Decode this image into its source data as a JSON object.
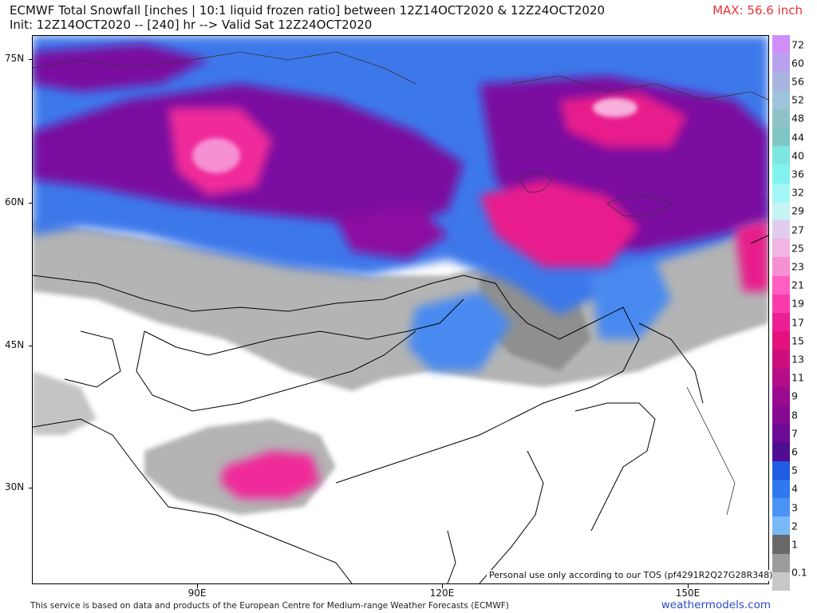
{
  "header": {
    "title_line1": "ECMWF Total Snowfall [inches | 10:1 liquid frozen ratio] between 12Z14OCT2020 & 12Z24OCT2020",
    "title_line2": "Init: 12Z14OCT2020 -- [240] hr --> Valid Sat 12Z24OCT2020",
    "max_label": "MAX: 56.6 inch",
    "max_color": "#e8343b"
  },
  "map": {
    "lat_labels": [
      "75N",
      "60N",
      "45N",
      "30N"
    ],
    "lon_labels": [
      "90E",
      "120E",
      "150E"
    ],
    "disclaimer": "Personal use only according to our TOS (pf4291R2Q27G28R348)"
  },
  "legend": {
    "labels": [
      "72",
      "60",
      "56",
      "52",
      "48",
      "44",
      "40",
      "36",
      "32",
      "29",
      "27",
      "25",
      "23",
      "21",
      "19",
      "17",
      "15",
      "13",
      "11",
      "9",
      "8",
      "7",
      "6",
      "5",
      "4",
      "3",
      "2",
      "1",
      "0.1"
    ],
    "colors": [
      "#d08ef8",
      "#b8a2ee",
      "#a9b5e0",
      "#9dc4dc",
      "#8fc3c7",
      "#7fc6c4",
      "#7de6e0",
      "#82f2f0",
      "#a2f6f6",
      "#c6f3f4",
      "#e2ccee",
      "#f2b4e0",
      "#f78fd3",
      "#ff5ec0",
      "#f93bac",
      "#ec1e93",
      "#e3107e",
      "#cc0f7c",
      "#b40d8a",
      "#9a0a8e",
      "#870a93",
      "#6d0a95",
      "#500d94",
      "#1f5ce4",
      "#2f78ee",
      "#4a92f4",
      "#79b8f7",
      "#686868",
      "#9b9b9b",
      "#c8c8c8"
    ]
  },
  "footer": {
    "left": "This service is based on data and products of the European Centre for Medium-range Weather Forecasts (ECMWF)",
    "right": "weathermodels.com"
  }
}
